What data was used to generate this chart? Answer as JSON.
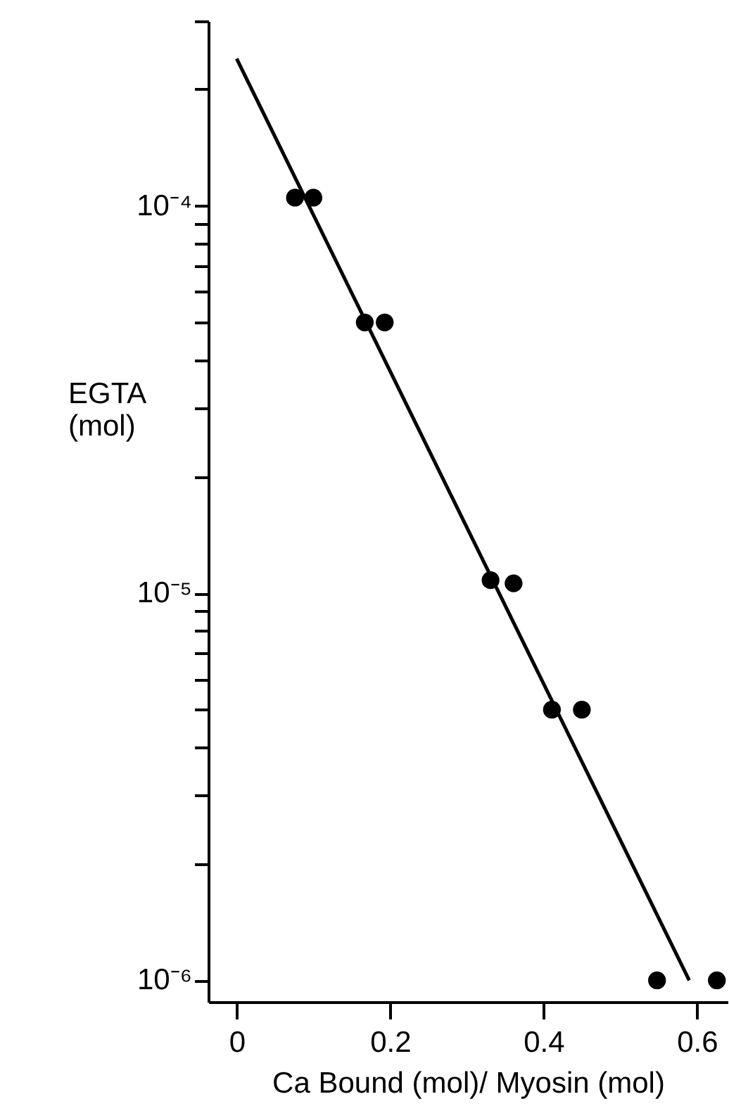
{
  "chart_data": {
    "type": "scatter",
    "xlabel": "Ca Bound (mol)/ Myosin (mol)",
    "ylabel": "EGTA\n(mol)",
    "log": "y",
    "grid": false,
    "marker": "circle",
    "xlim": [
      -0.037,
      0.64
    ],
    "xticks": [
      0,
      0.2,
      0.4,
      0.6
    ],
    "ylim": [
      8.8e-07,
      0.0003
    ],
    "yticks": [
      {
        "value": 1e-06,
        "label": "10⁻⁶"
      },
      {
        "value": 2e-06,
        "label": null
      },
      {
        "value": 3e-06,
        "label": null
      },
      {
        "value": 4e-06,
        "label": null
      },
      {
        "value": 5e-06,
        "label": null
      },
      {
        "value": 6e-06,
        "label": null
      },
      {
        "value": 7e-06,
        "label": null
      },
      {
        "value": 8e-06,
        "label": null
      },
      {
        "value": 9e-06,
        "label": null
      },
      {
        "value": 1e-05,
        "label": "10⁻⁵"
      },
      {
        "value": 2e-05,
        "label": null
      },
      {
        "value": 3e-05,
        "label": null
      },
      {
        "value": 4e-05,
        "label": null
      },
      {
        "value": 5e-05,
        "label": null
      },
      {
        "value": 6e-05,
        "label": null
      },
      {
        "value": 7e-05,
        "label": null
      },
      {
        "value": 8e-05,
        "label": null
      },
      {
        "value": 9e-05,
        "label": null
      },
      {
        "value": 0.0001,
        "label": "10⁻⁴"
      },
      {
        "value": 0.0002,
        "label": null
      },
      {
        "value": 0.0003,
        "label": null
      }
    ],
    "series": [
      {
        "color": "#000000",
        "x": [
          0.076,
          0.1,
          0.167,
          0.193,
          0.331,
          0.361,
          0.411,
          0.45,
          0.548,
          0.626
        ],
        "values": [
          0.000105,
          0.000105,
          5e-05,
          5e-05,
          1.08e-05,
          1.06e-05,
          5e-06,
          5e-06,
          1e-06,
          1e-06
        ]
      },
      {
        "type": "line",
        "marker": "none",
        "color": "#000000",
        "x": [
          0,
          0.59
        ],
        "values": [
          0.00024,
          1e-06
        ]
      }
    ]
  }
}
